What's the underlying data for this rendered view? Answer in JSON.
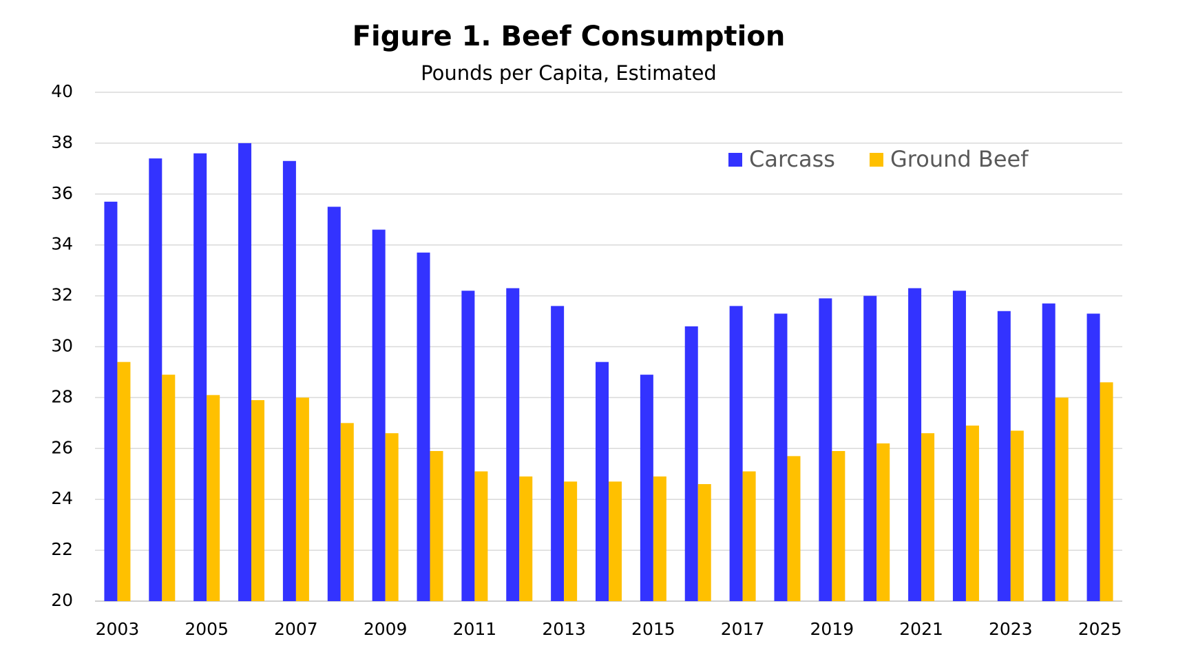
{
  "chart_data": {
    "type": "bar",
    "title": "Figure 1. Beef Consumption",
    "subtitle": "Pounds per Capita, Estimated",
    "categories": [
      "2003",
      null,
      "2005",
      null,
      "2007",
      null,
      "2009",
      null,
      "2011",
      null,
      "2013",
      null,
      "2015",
      null,
      "2017",
      null,
      "2019",
      null,
      "2021",
      null,
      "2023",
      null,
      "2025"
    ],
    "series": [
      {
        "name": "Carcass",
        "color": "#3333ff",
        "values": [
          35.7,
          37.4,
          37.6,
          38.0,
          37.3,
          35.5,
          34.6,
          33.7,
          32.2,
          32.3,
          31.6,
          29.4,
          28.9,
          30.8,
          31.6,
          31.3,
          31.9,
          32.0,
          32.3,
          32.2,
          31.4,
          31.7,
          31.3
        ]
      },
      {
        "name": "Ground Beef",
        "color": "#ffc000",
        "values": [
          29.4,
          28.9,
          28.1,
          27.9,
          28.0,
          27.0,
          26.6,
          25.9,
          25.1,
          24.9,
          24.7,
          24.7,
          24.9,
          24.6,
          25.1,
          25.7,
          25.9,
          26.2,
          26.6,
          26.9,
          26.7,
          28.0,
          28.6
        ]
      }
    ],
    "ylim": [
      20,
      40
    ],
    "yticks": [
      20,
      22,
      24,
      26,
      28,
      30,
      32,
      34,
      36,
      38,
      40
    ],
    "grid": true,
    "legend": "top-right"
  }
}
